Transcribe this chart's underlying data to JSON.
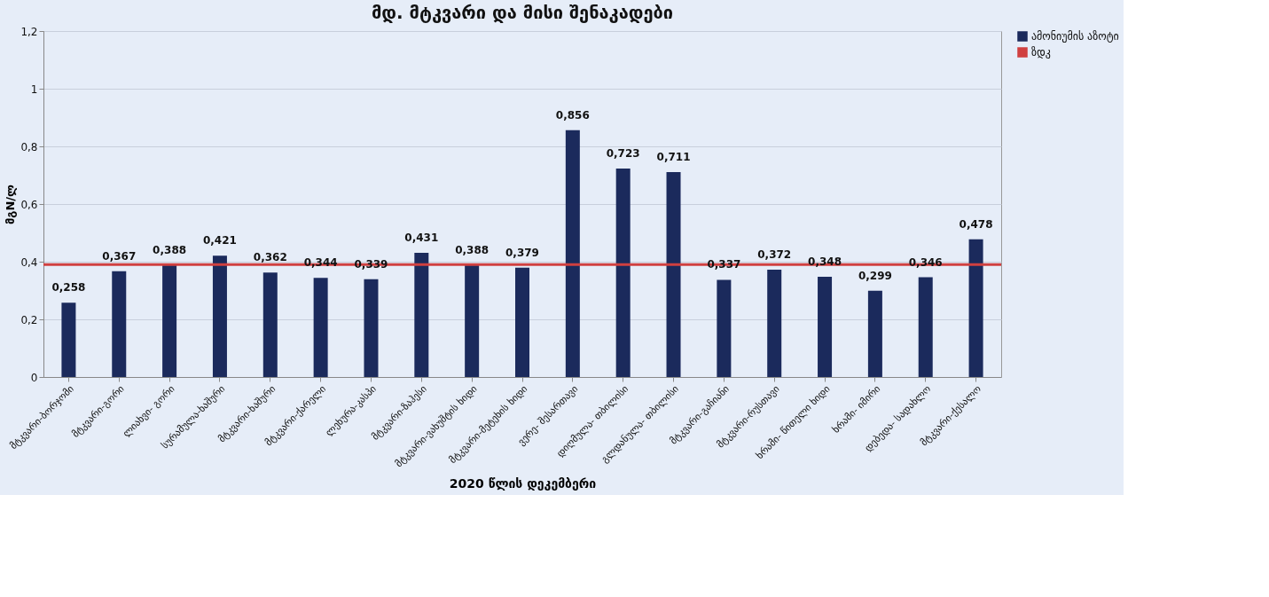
{
  "chart_data": {
    "type": "bar",
    "title": "მდ. მტკვარი და მისი შენაკადები",
    "xlabel": "2020 წლის  დეკემბერი",
    "ylabel": "მგN/ლ",
    "categories": [
      "მტკვარი-ბორჯომი",
      "მტკვარი-გორი",
      "ლიახვი- გორი",
      "სურამულა-ხაშური",
      "მტკვარი-ხაშური",
      "მტკვარი-ქარელი",
      "ლეხურა-კასპი",
      "მტკვარი-ზაჰესი",
      "მტკვარი-ვახუშტის ხიდი",
      "მტკვარი-მეტეხის ხიდი",
      "ვერე- შესართავი",
      "დიღმულა- თბილისი",
      "გლდანულა- თბილისი",
      "მტკვარი-გაჩიანი",
      "მტკვარი-რუსთავი",
      "ხრამი- წითელი ხიდი",
      "ხრამი- იმირი",
      "დებედა- სადახლო",
      "მტკვარი-ქესალო"
    ],
    "series": [
      {
        "name": "ამონიუმის აზოტი",
        "color": "#1b2a5c",
        "values": [
          0.258,
          0.367,
          0.388,
          0.421,
          0.362,
          0.344,
          0.339,
          0.431,
          0.388,
          0.379,
          0.856,
          0.723,
          0.711,
          0.337,
          0.372,
          0.348,
          0.299,
          0.346,
          0.478
        ],
        "value_labels": [
          "0,258",
          "0,367",
          "0,388",
          "0,421",
          "0,362",
          "0,344",
          "0,339",
          "0,431",
          "0,388",
          "0,379",
          "0,856",
          "0,723",
          "0,711",
          "0,337",
          "0,372",
          "0,348",
          "0,299",
          "0,346",
          "0,478"
        ]
      }
    ],
    "ref_lines": [
      {
        "axis": "y",
        "value": 0.39,
        "label": "ზდკ",
        "color": "#d04040",
        "line_style": "solid"
      }
    ],
    "ylim": [
      0,
      1.2
    ],
    "yticks": [
      0,
      {
        "value": 0.2,
        "label": "0,2"
      },
      {
        "value": 0.4,
        "label": "0,4"
      },
      {
        "value": 0.6,
        "label": "0,6"
      },
      {
        "value": 0.8,
        "label": "0,8"
      },
      1,
      {
        "value": 1.2,
        "label": "1,2"
      }
    ],
    "grid": "y",
    "legend": "right"
  }
}
